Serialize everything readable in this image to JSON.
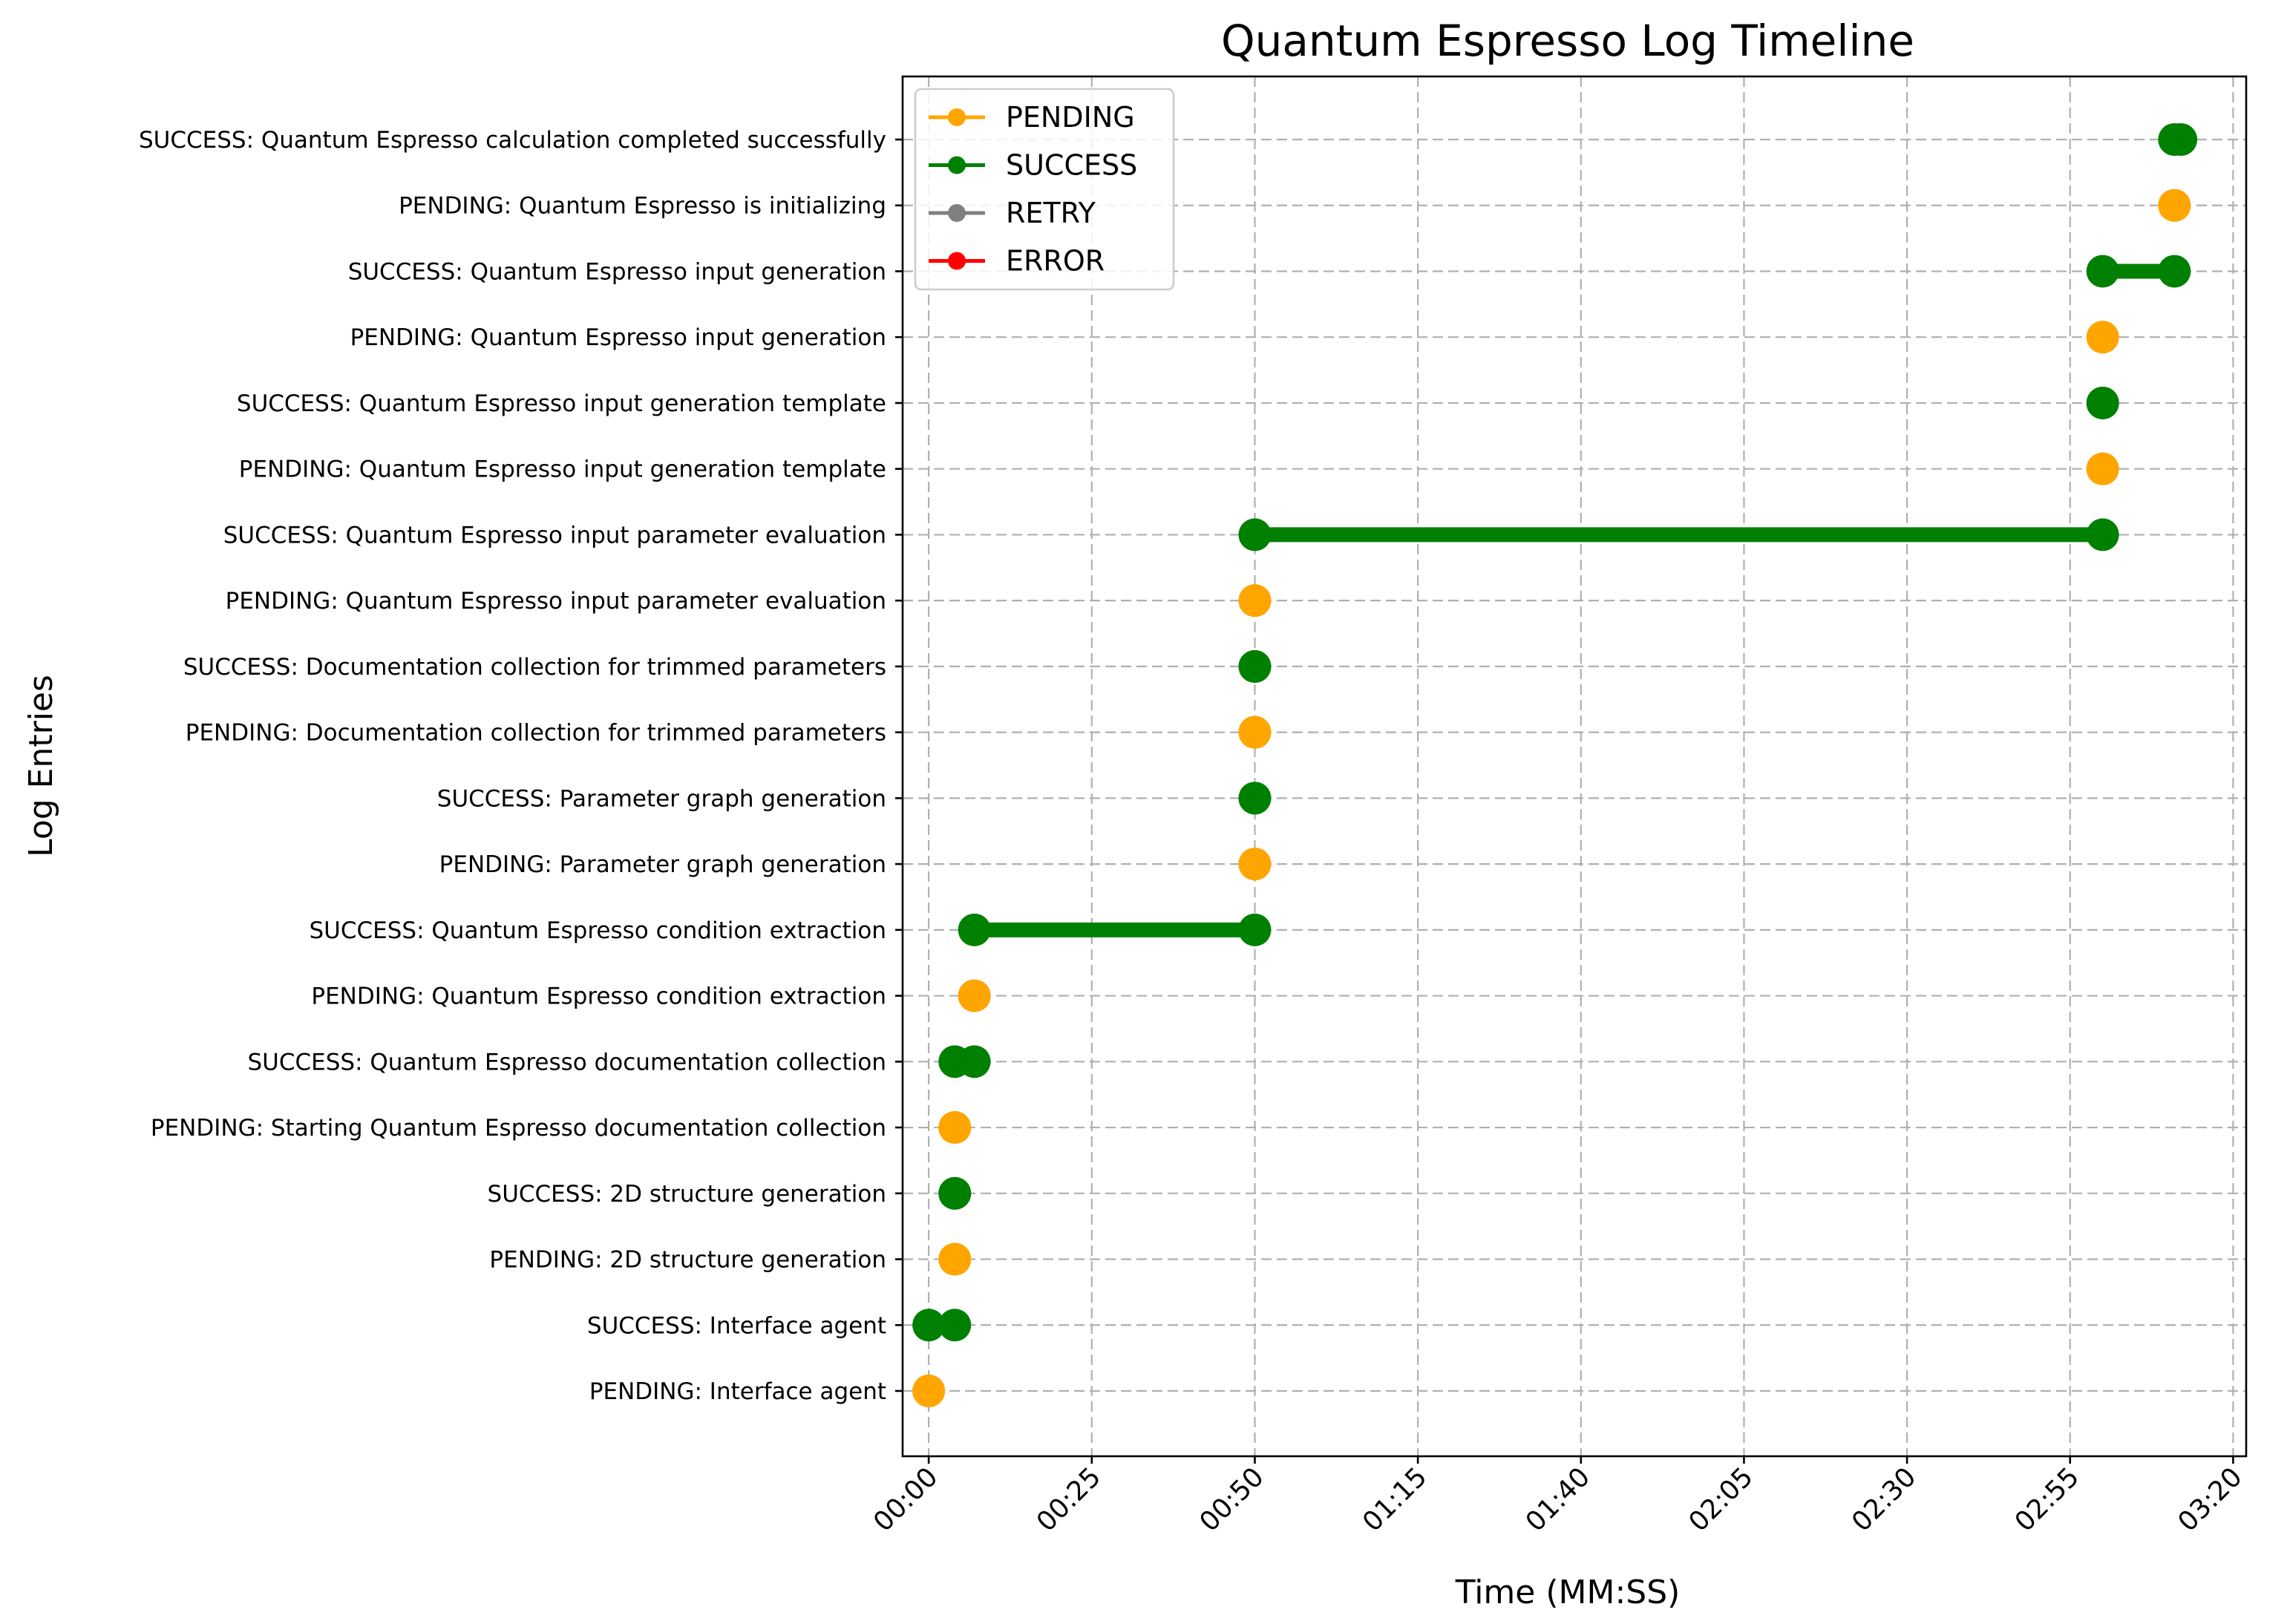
{
  "chart_data": {
    "type": "scatter",
    "title": "Quantum Espresso Log Timeline",
    "xlabel": "Time (MM:SS)",
    "ylabel": "Log Entries",
    "xlim": [
      -4,
      202
    ],
    "x_ticks": [
      {
        "value": 0,
        "label": "00:00"
      },
      {
        "value": 25,
        "label": "00:25"
      },
      {
        "value": 50,
        "label": "00:50"
      },
      {
        "value": 75,
        "label": "01:15"
      },
      {
        "value": 100,
        "label": "01:40"
      },
      {
        "value": 125,
        "label": "02:05"
      },
      {
        "value": 150,
        "label": "02:30"
      },
      {
        "value": 175,
        "label": "02:55"
      },
      {
        "value": 200,
        "label": "03:20"
      }
    ],
    "grid": true,
    "legend_position": "upper left",
    "status_colors": {
      "PENDING": "#ffa500",
      "SUCCESS": "#008000",
      "RETRY": "#808080",
      "ERROR": "#ff0000"
    },
    "legend": [
      {
        "name": "PENDING",
        "color": "#ffa500"
      },
      {
        "name": "SUCCESS",
        "color": "#008000"
      },
      {
        "name": "RETRY",
        "color": "#808080"
      },
      {
        "name": "ERROR",
        "color": "#ff0000"
      }
    ],
    "entries": [
      {
        "label": "PENDING: Interface agent",
        "status": "PENDING",
        "start": 0,
        "end": 0
      },
      {
        "label": "SUCCESS: Interface agent",
        "status": "SUCCESS",
        "start": 0,
        "end": 4
      },
      {
        "label": "PENDING: 2D structure generation",
        "status": "PENDING",
        "start": 4,
        "end": 4
      },
      {
        "label": "SUCCESS: 2D structure generation",
        "status": "SUCCESS",
        "start": 4,
        "end": 4
      },
      {
        "label": "PENDING: Starting Quantum Espresso documentation collection",
        "status": "PENDING",
        "start": 4,
        "end": 4
      },
      {
        "label": "SUCCESS: Quantum Espresso documentation collection",
        "status": "SUCCESS",
        "start": 4,
        "end": 7
      },
      {
        "label": "PENDING: Quantum Espresso condition extraction",
        "status": "PENDING",
        "start": 7,
        "end": 7
      },
      {
        "label": "SUCCESS: Quantum Espresso condition extraction",
        "status": "SUCCESS",
        "start": 7,
        "end": 50
      },
      {
        "label": "PENDING: Parameter graph generation",
        "status": "PENDING",
        "start": 50,
        "end": 50
      },
      {
        "label": "SUCCESS: Parameter graph generation",
        "status": "SUCCESS",
        "start": 50,
        "end": 50
      },
      {
        "label": "PENDING: Documentation collection for trimmed parameters",
        "status": "PENDING",
        "start": 50,
        "end": 50
      },
      {
        "label": "SUCCESS: Documentation collection for trimmed parameters",
        "status": "SUCCESS",
        "start": 50,
        "end": 50
      },
      {
        "label": "PENDING: Quantum Espresso input parameter evaluation",
        "status": "PENDING",
        "start": 50,
        "end": 50
      },
      {
        "label": "SUCCESS: Quantum Espresso input parameter evaluation",
        "status": "SUCCESS",
        "start": 50,
        "end": 180
      },
      {
        "label": "PENDING: Quantum Espresso input generation template",
        "status": "PENDING",
        "start": 180,
        "end": 180
      },
      {
        "label": "SUCCESS: Quantum Espresso input generation template",
        "status": "SUCCESS",
        "start": 180,
        "end": 180
      },
      {
        "label": "PENDING: Quantum Espresso input generation",
        "status": "PENDING",
        "start": 180,
        "end": 180
      },
      {
        "label": "SUCCESS: Quantum Espresso input generation",
        "status": "SUCCESS",
        "start": 180,
        "end": 191
      },
      {
        "label": "PENDING: Quantum Espresso is initializing",
        "status": "PENDING",
        "start": 191,
        "end": 191
      },
      {
        "label": "SUCCESS: Quantum Espresso calculation completed successfully",
        "status": "SUCCESS",
        "start": 191,
        "end": 192
      }
    ]
  }
}
